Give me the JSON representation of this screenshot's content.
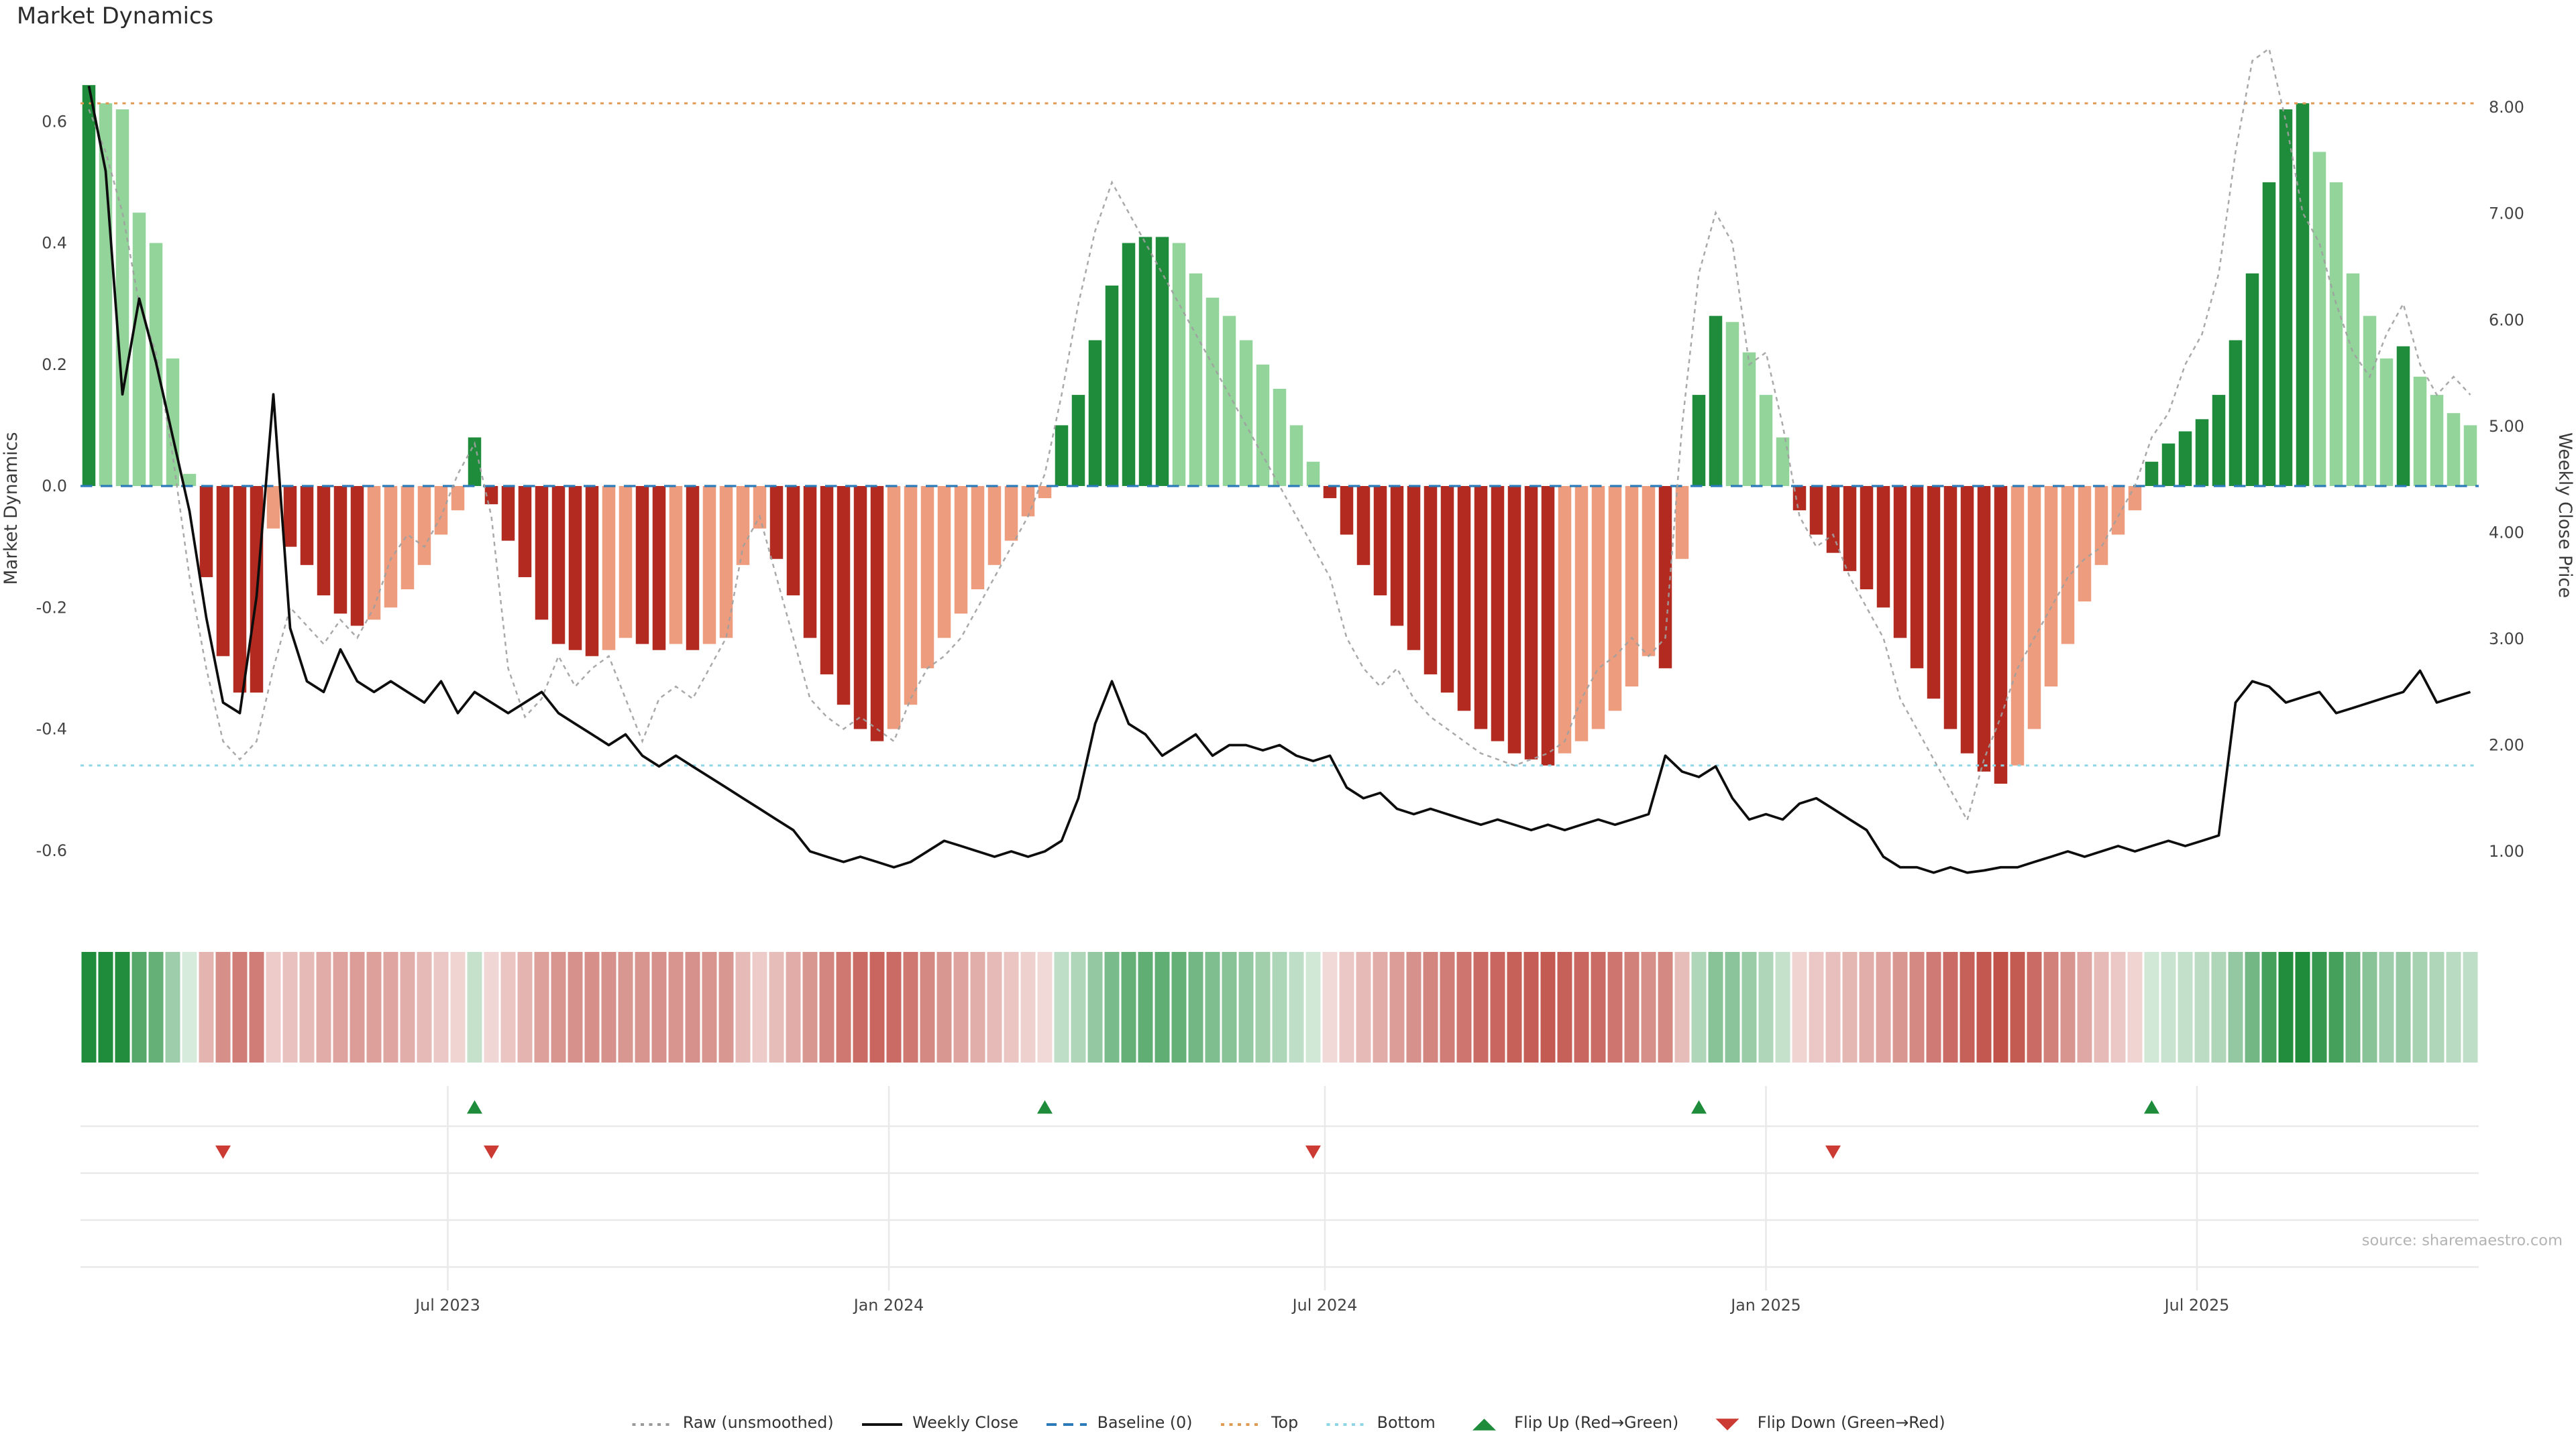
{
  "title": "Market Dynamics",
  "source": "source: sharemaestro.com",
  "chart_data": {
    "type": "bar",
    "title": "Market Dynamics",
    "subtitle": "",
    "layout_hints": {
      "grid": "off in main panel, faint grid in lower marker panel",
      "legend_position": "bottom-center",
      "left_axis_range": [
        -0.72,
        0.7
      ],
      "right_axis_range": [
        0.6,
        8.4
      ]
    },
    "axes": {
      "left": {
        "label": "Market Dynamics",
        "ticks": [
          0.6,
          0.4,
          0.2,
          0.0,
          -0.2,
          -0.4,
          -0.6
        ],
        "tick_labels": [
          "0.6",
          "0.4",
          "0.2",
          "0.0",
          "-0.2",
          "-0.4",
          "-0.6"
        ]
      },
      "right": {
        "label": "Weekly Close Price",
        "ticks": [
          8,
          7,
          6,
          5,
          4,
          3,
          2,
          1
        ],
        "tick_labels": [
          "8.00",
          "7.00",
          "6.00",
          "5.00",
          "4.00",
          "3.00",
          "2.00",
          "1.00"
        ]
      },
      "x": {
        "ticks": [
          {
            "label": "Jul 2023",
            "week": 21.4
          },
          {
            "label": "Jan 2024",
            "week": 47.7
          },
          {
            "label": "Jul 2024",
            "week": 73.7
          },
          {
            "label": "Jan 2025",
            "week": 100.0
          },
          {
            "label": "Jul 2025",
            "week": 125.7
          }
        ]
      }
    },
    "reference_lines": {
      "baseline": 0.0,
      "top": 0.63,
      "bottom": -0.46
    },
    "series": [
      {
        "name": "Market Dynamics (smoothed bars)",
        "type": "bar",
        "values": [
          0.66,
          0.63,
          0.62,
          0.45,
          0.4,
          0.21,
          0.02,
          -0.15,
          -0.28,
          -0.34,
          -0.34,
          -0.07,
          -0.1,
          -0.13,
          -0.18,
          -0.21,
          -0.23,
          -0.22,
          -0.2,
          -0.17,
          -0.13,
          -0.08,
          -0.04,
          0.08,
          -0.03,
          -0.09,
          -0.15,
          -0.22,
          -0.26,
          -0.27,
          -0.28,
          -0.27,
          -0.25,
          -0.26,
          -0.27,
          -0.26,
          -0.27,
          -0.26,
          -0.25,
          -0.13,
          -0.07,
          -0.12,
          -0.18,
          -0.25,
          -0.31,
          -0.36,
          -0.4,
          -0.42,
          -0.4,
          -0.36,
          -0.3,
          -0.25,
          -0.21,
          -0.17,
          -0.13,
          -0.09,
          -0.05,
          -0.02,
          0.1,
          0.15,
          0.24,
          0.33,
          0.4,
          0.41,
          0.41,
          0.4,
          0.35,
          0.31,
          0.28,
          0.24,
          0.2,
          0.16,
          0.1,
          0.04,
          -0.02,
          -0.08,
          -0.13,
          -0.18,
          -0.23,
          -0.27,
          -0.31,
          -0.34,
          -0.37,
          -0.4,
          -0.42,
          -0.44,
          -0.45,
          -0.46,
          -0.44,
          -0.42,
          -0.4,
          -0.37,
          -0.33,
          -0.28,
          -0.3,
          -0.12,
          0.15,
          0.28,
          0.27,
          0.22,
          0.15,
          0.08,
          -0.04,
          -0.08,
          -0.11,
          -0.14,
          -0.17,
          -0.2,
          -0.25,
          -0.3,
          -0.35,
          -0.4,
          -0.44,
          -0.47,
          -0.49,
          -0.46,
          -0.4,
          -0.33,
          -0.26,
          -0.19,
          -0.13,
          -0.08,
          -0.04,
          0.04,
          0.07,
          0.09,
          0.11,
          0.15,
          0.24,
          0.35,
          0.5,
          0.62,
          0.63,
          0.55,
          0.5,
          0.35,
          0.28,
          0.21,
          0.23,
          0.18,
          0.15,
          0.12,
          0.1
        ]
      },
      {
        "name": "Raw (unsmoothed)",
        "type": "line",
        "values": [
          0.62,
          0.55,
          0.45,
          0.3,
          0.22,
          0.05,
          -0.15,
          -0.3,
          -0.42,
          -0.45,
          -0.42,
          -0.3,
          -0.2,
          -0.23,
          -0.26,
          -0.22,
          -0.25,
          -0.2,
          -0.12,
          -0.08,
          -0.1,
          -0.05,
          0.02,
          0.07,
          -0.05,
          -0.3,
          -0.38,
          -0.35,
          -0.28,
          -0.33,
          -0.3,
          -0.28,
          -0.35,
          -0.42,
          -0.35,
          -0.33,
          -0.35,
          -0.3,
          -0.25,
          -0.1,
          -0.05,
          -0.15,
          -0.25,
          -0.35,
          -0.38,
          -0.4,
          -0.38,
          -0.4,
          -0.42,
          -0.35,
          -0.3,
          -0.28,
          -0.25,
          -0.2,
          -0.15,
          -0.1,
          -0.05,
          0.02,
          0.15,
          0.3,
          0.42,
          0.5,
          0.45,
          0.4,
          0.35,
          0.3,
          0.25,
          0.2,
          0.15,
          0.1,
          0.05,
          0.0,
          -0.05,
          -0.1,
          -0.15,
          -0.25,
          -0.3,
          -0.33,
          -0.3,
          -0.35,
          -0.38,
          -0.4,
          -0.42,
          -0.44,
          -0.45,
          -0.46,
          -0.45,
          -0.44,
          -0.42,
          -0.35,
          -0.3,
          -0.28,
          -0.25,
          -0.28,
          -0.25,
          0.1,
          0.35,
          0.45,
          0.4,
          0.2,
          0.22,
          0.1,
          -0.05,
          -0.1,
          -0.08,
          -0.15,
          -0.2,
          -0.25,
          -0.35,
          -0.4,
          -0.45,
          -0.5,
          -0.55,
          -0.45,
          -0.38,
          -0.3,
          -0.25,
          -0.2,
          -0.15,
          -0.12,
          -0.1,
          -0.05,
          0.0,
          0.08,
          0.12,
          0.2,
          0.25,
          0.35,
          0.55,
          0.7,
          0.72,
          0.6,
          0.45,
          0.4,
          0.3,
          0.22,
          0.18,
          0.25,
          0.3,
          0.2,
          0.15,
          0.18,
          0.15
        ]
      },
      {
        "name": "Weekly Close",
        "type": "line",
        "axis": "right",
        "values": [
          8.2,
          7.4,
          5.3,
          6.2,
          5.6,
          4.9,
          4.2,
          3.2,
          2.4,
          2.3,
          3.4,
          5.3,
          3.1,
          2.6,
          2.5,
          2.9,
          2.6,
          2.5,
          2.6,
          2.5,
          2.4,
          2.6,
          2.3,
          2.5,
          2.4,
          2.3,
          2.4,
          2.5,
          2.3,
          2.2,
          2.1,
          2.0,
          2.1,
          1.9,
          1.8,
          1.9,
          1.8,
          1.7,
          1.6,
          1.5,
          1.4,
          1.3,
          1.2,
          1.0,
          0.95,
          0.9,
          0.95,
          0.9,
          0.85,
          0.9,
          1.0,
          1.1,
          1.05,
          1.0,
          0.95,
          1.0,
          0.95,
          1.0,
          1.1,
          1.5,
          2.2,
          2.6,
          2.2,
          2.1,
          1.9,
          2.0,
          2.1,
          1.9,
          2.0,
          2.0,
          1.95,
          2.0,
          1.9,
          1.85,
          1.9,
          1.6,
          1.5,
          1.55,
          1.4,
          1.35,
          1.4,
          1.35,
          1.3,
          1.25,
          1.3,
          1.25,
          1.2,
          1.25,
          1.2,
          1.25,
          1.3,
          1.25,
          1.3,
          1.35,
          1.9,
          1.75,
          1.7,
          1.8,
          1.5,
          1.3,
          1.35,
          1.3,
          1.45,
          1.5,
          1.4,
          1.3,
          1.2,
          0.95,
          0.85,
          0.85,
          0.8,
          0.85,
          0.8,
          0.82,
          0.85,
          0.85,
          0.9,
          0.95,
          1.0,
          0.95,
          1.0,
          1.05,
          1.0,
          1.05,
          1.1,
          1.05,
          1.1,
          1.15,
          2.4,
          2.6,
          2.55,
          2.4,
          2.45,
          2.5,
          2.3,
          2.35,
          2.4,
          2.45,
          2.5,
          2.7,
          2.4,
          2.45,
          2.5
        ]
      }
    ],
    "heatmap": {
      "description": "weekly color strip below main panel, shade derived from bar value (green positive, red negative)"
    },
    "markers": {
      "flip_up_weeks": [
        23,
        57,
        96,
        123
      ],
      "flip_down_weeks": [
        8,
        24,
        73,
        104
      ]
    },
    "legend": [
      {
        "label": "Raw (unsmoothed)",
        "type": "line",
        "style": "dotted",
        "color": "#9a9a9a"
      },
      {
        "label": "Weekly Close",
        "type": "line",
        "style": "solid",
        "color": "#111111"
      },
      {
        "label": "Baseline (0)",
        "type": "line",
        "style": "dashed",
        "color": "#2b7bba"
      },
      {
        "label": "Top",
        "type": "line",
        "style": "dotted",
        "color": "#e09a54"
      },
      {
        "label": "Bottom",
        "type": "line",
        "style": "dotted",
        "color": "#8ed6e6"
      },
      {
        "label": "Flip Up (Red→Green)",
        "type": "marker",
        "shape": "triangle-up",
        "color": "#1e8c3a"
      },
      {
        "label": "Flip Down (Green→Red)",
        "type": "marker",
        "shape": "triangle-down",
        "color": "#cc3b33"
      }
    ],
    "colors": {
      "bar_up_strong": "#1e8c3a",
      "bar_up_weak": "#93d49b",
      "bar_down_strong": "#b22a20",
      "bar_down_weak": "#ed9d7d",
      "baseline": "#2b7bba",
      "top": "#e09a54",
      "bottom": "#8ed6e6",
      "raw": "#a0a0a0",
      "weekly_close": "#0d0d0d",
      "flip_up": "#1e8c3a",
      "flip_down": "#cc3b33",
      "tick_text": "#444444",
      "grid": "#e9e9e9"
    }
  }
}
